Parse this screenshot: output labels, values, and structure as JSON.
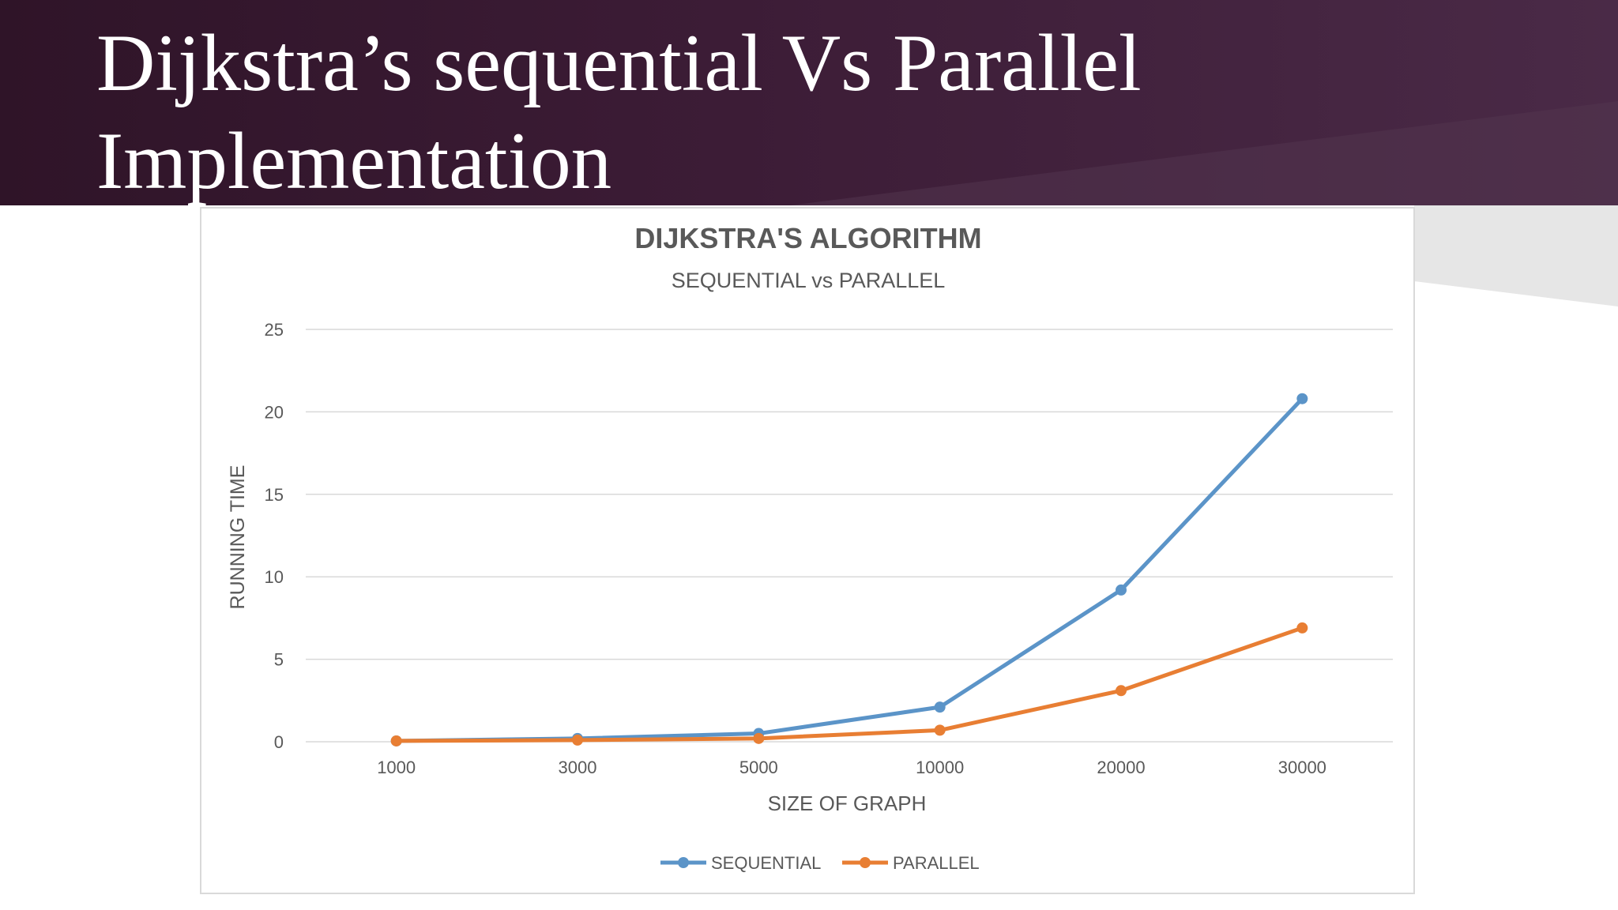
{
  "slide": {
    "title": "Dijkstra’s sequential Vs Parallel\nImplementation"
  },
  "colors": {
    "band": "#3c1c36",
    "sequential": "#5b94c8",
    "parallel": "#e87e33",
    "grid": "#d9d9d9",
    "axis_text": "#595959"
  },
  "chart_data": {
    "type": "line",
    "title": "DIJKSTRA'S ALGORITHM",
    "subtitle": "SEQUENTIAL vs PARALLEL",
    "xlabel": "SIZE OF GRAPH",
    "ylabel": "RUNNING TIME",
    "categories": [
      "1000",
      "3000",
      "5000",
      "10000",
      "20000",
      "30000"
    ],
    "y_ticks": [
      "0",
      "5",
      "10",
      "15",
      "20",
      "25"
    ],
    "ylim": [
      0,
      25
    ],
    "grid": true,
    "legend_position": "bottom",
    "series": [
      {
        "name": "SEQUENTIAL",
        "color": "#5b94c8",
        "values": [
          0.05,
          0.2,
          0.5,
          2.1,
          9.2,
          20.8
        ]
      },
      {
        "name": "PARALLEL",
        "color": "#e87e33",
        "values": [
          0.05,
          0.1,
          0.2,
          0.7,
          3.1,
          6.9
        ]
      }
    ]
  }
}
